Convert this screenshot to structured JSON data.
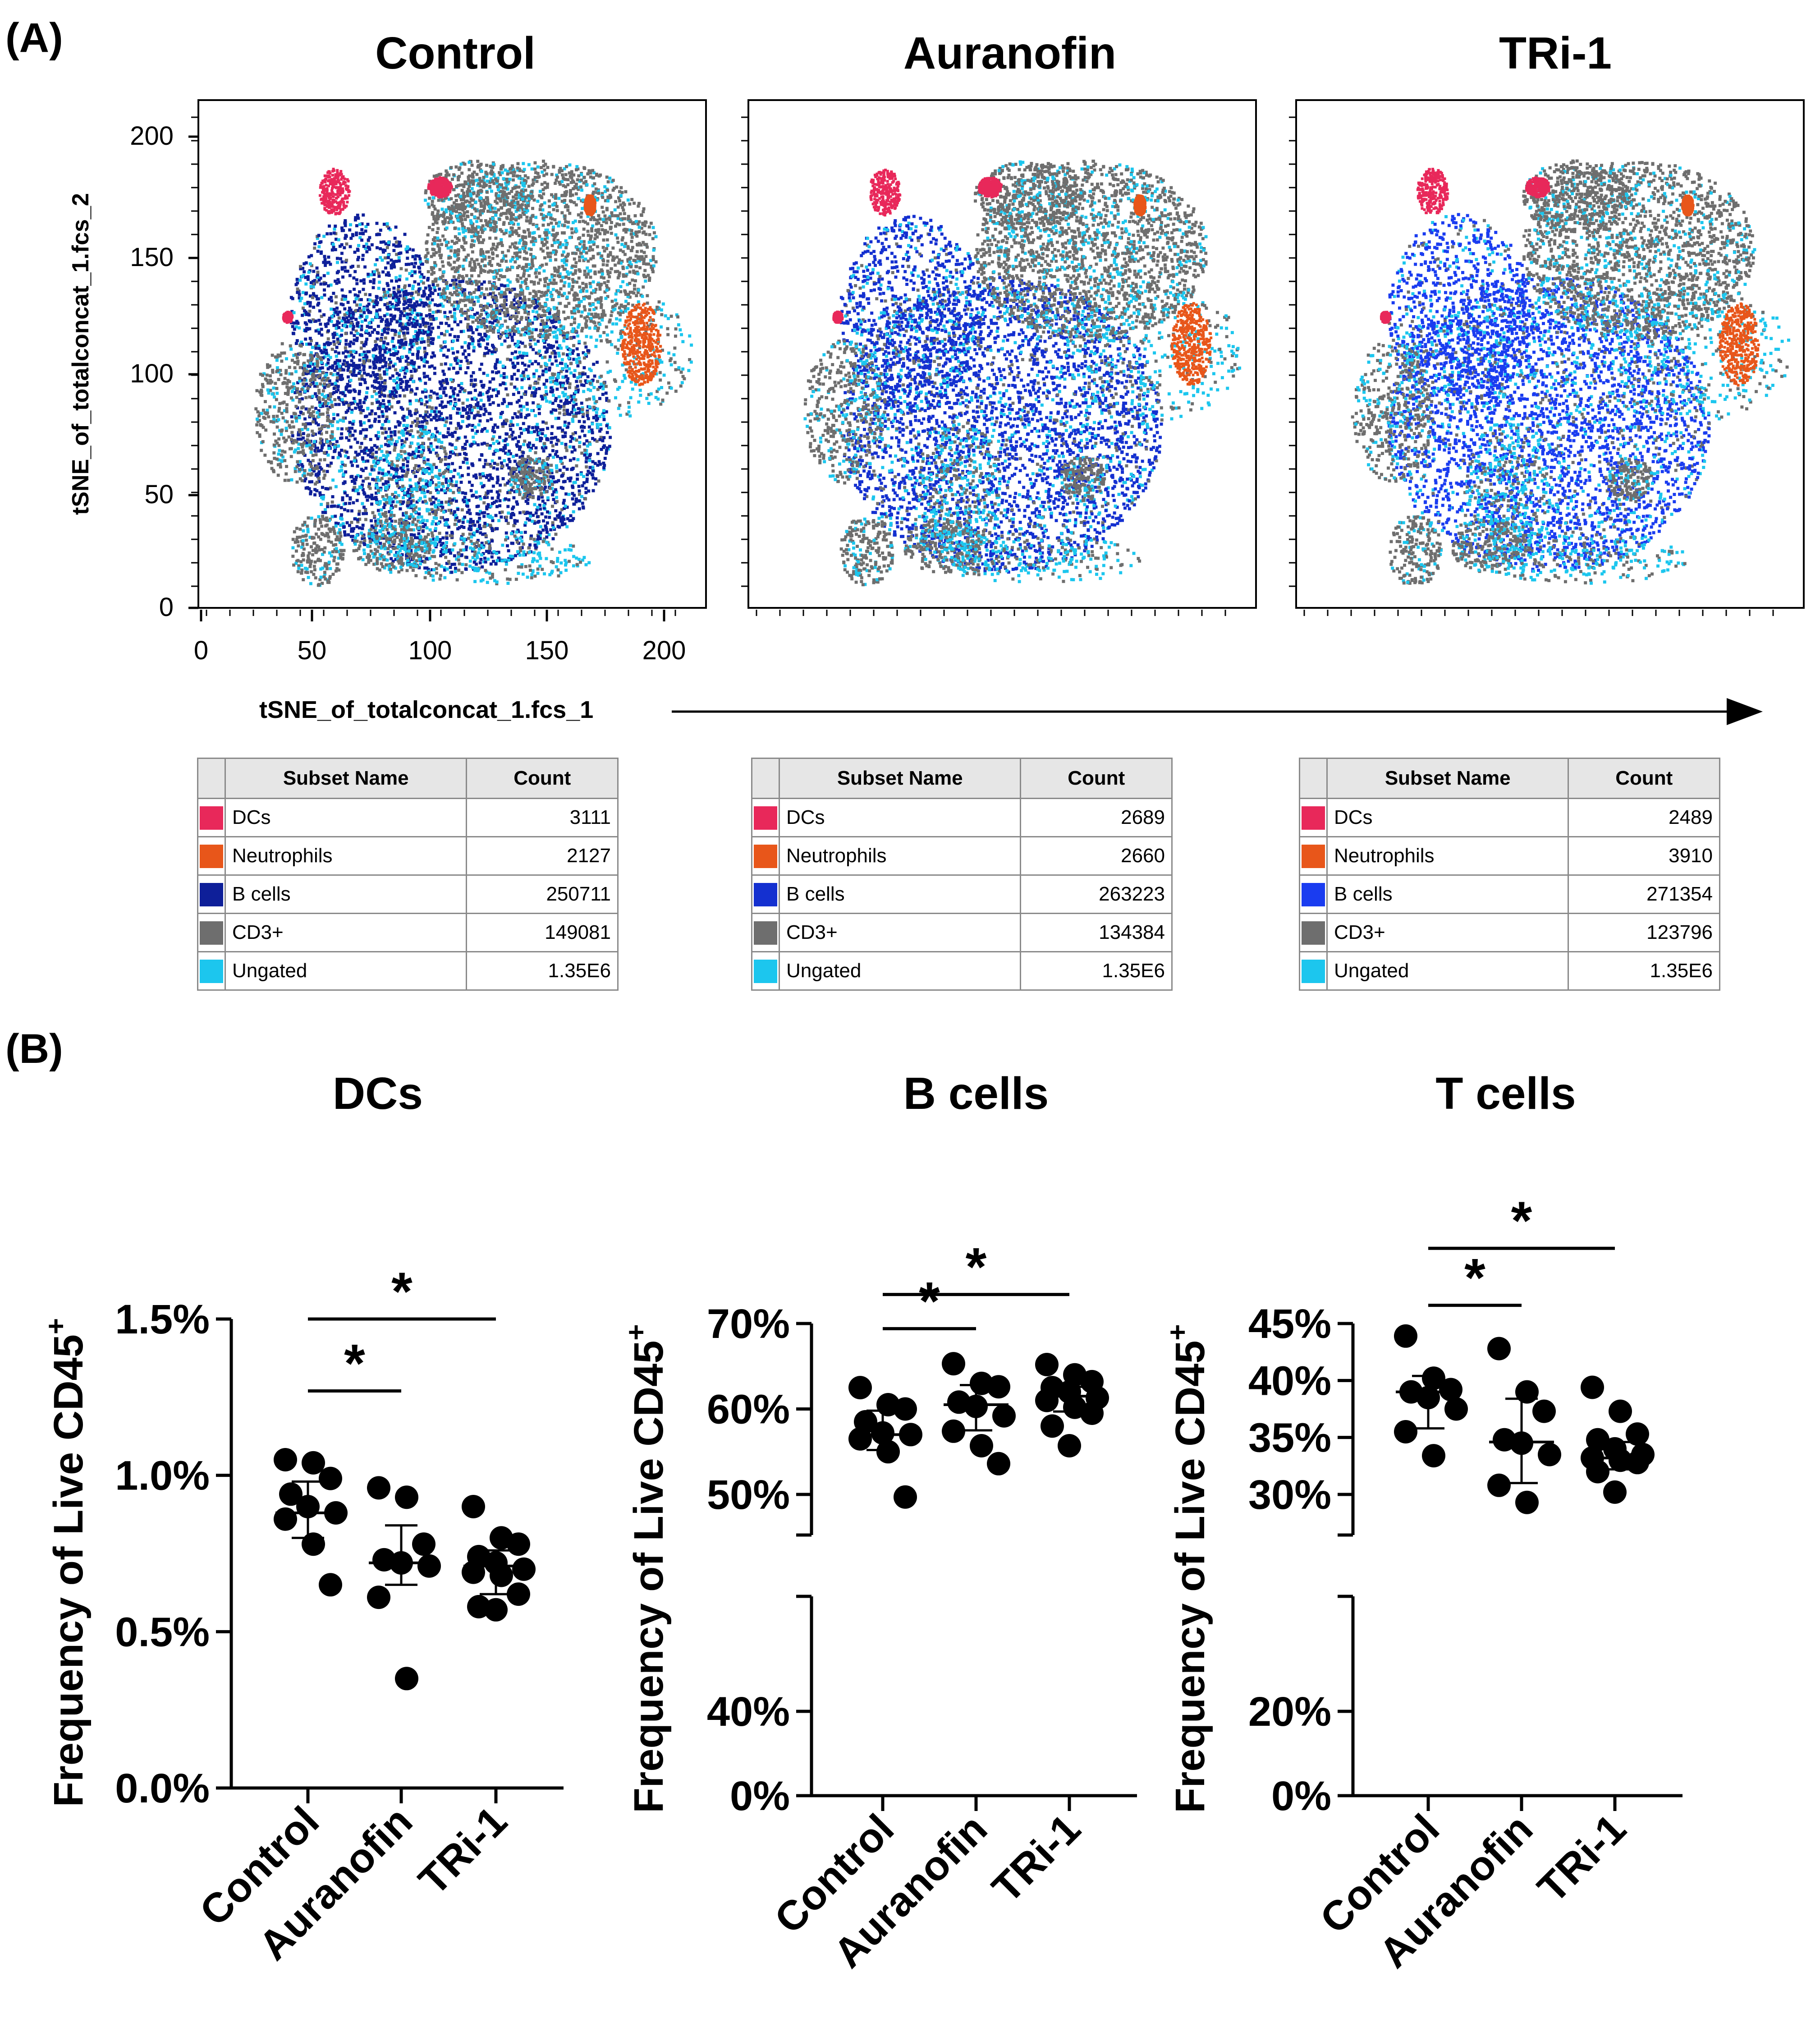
{
  "panel_a": {
    "label": "(A)",
    "y_axis_label": "tSNE_of_totalconcat_1.fcs_2",
    "x_axis_label": "tSNE_of_totalconcat_1.fcs_1",
    "y_ticks": [
      "200",
      "150",
      "100",
      "50",
      "0"
    ],
    "x_ticks": [
      "0",
      "50",
      "100",
      "150",
      "200"
    ],
    "plots": [
      {
        "title": "Control"
      },
      {
        "title": "Auranofin"
      },
      {
        "title": "TRi-1"
      }
    ],
    "table_headers": {
      "name": "Subset Name",
      "count": "Count"
    },
    "subset_colors": {
      "DCs": "#e8285a",
      "Neutrophils": "#e8561a",
      "B cells": "#1a2fc0",
      "CD3+": "#6e6e6e",
      "Ungated": "#1cc6ee"
    },
    "tables": [
      {
        "rows": [
          {
            "name": "DCs",
            "color": "#e8285a",
            "count": "3111"
          },
          {
            "name": "Neutrophils",
            "color": "#e8561a",
            "count": "2127"
          },
          {
            "name": "B cells",
            "color": "#0e1f99",
            "count": "250711"
          },
          {
            "name": "CD3+",
            "color": "#6e6e6e",
            "count": "149081"
          },
          {
            "name": "Ungated",
            "color": "#1cc6ee",
            "count": "1.35E6"
          }
        ]
      },
      {
        "rows": [
          {
            "name": "DCs",
            "color": "#e8285a",
            "count": "2689"
          },
          {
            "name": "Neutrophils",
            "color": "#e8561a",
            "count": "2660"
          },
          {
            "name": "B cells",
            "color": "#1430d0",
            "count": "263223"
          },
          {
            "name": "CD3+",
            "color": "#6e6e6e",
            "count": "134384"
          },
          {
            "name": "Ungated",
            "color": "#1cc6ee",
            "count": "1.35E6"
          }
        ]
      },
      {
        "rows": [
          {
            "name": "DCs",
            "color": "#e8285a",
            "count": "2489"
          },
          {
            "name": "Neutrophils",
            "color": "#e8561a",
            "count": "3910"
          },
          {
            "name": "B cells",
            "color": "#1a3cf0",
            "count": "271354"
          },
          {
            "name": "CD3+",
            "color": "#6e6e6e",
            "count": "123796"
          },
          {
            "name": "Ungated",
            "color": "#1cc6ee",
            "count": "1.35E6"
          }
        ]
      }
    ]
  },
  "panel_b": {
    "label": "(B)"
  },
  "chart_data": [
    {
      "type": "scatter",
      "title": "DCs",
      "ylabel": "Frequency of Live CD45",
      "ylabel_sup": "+",
      "categories": [
        "Control",
        "Auranofin",
        "TRi-1"
      ],
      "ylim": [
        0,
        1.5
      ],
      "y_ticks": [
        {
          "v": 0,
          "label": "0.0%"
        },
        {
          "v": 0.5,
          "label": "0.5%"
        },
        {
          "v": 1.0,
          "label": "1.0%"
        },
        {
          "v": 1.5,
          "label": "1.5%"
        }
      ],
      "series": [
        {
          "name": "Control",
          "values": [
            1.05,
            1.04,
            0.99,
            0.94,
            0.9,
            0.88,
            0.86,
            0.78,
            0.65
          ],
          "mean": 0.88,
          "err": [
            0.8,
            0.98
          ]
        },
        {
          "name": "Auranofin",
          "values": [
            0.96,
            0.93,
            0.78,
            0.73,
            0.72,
            0.71,
            0.61,
            0.35
          ],
          "mean": 0.72,
          "err": [
            0.65,
            0.84
          ]
        },
        {
          "name": "TRi-1",
          "values": [
            0.9,
            0.8,
            0.78,
            0.74,
            0.72,
            0.7,
            0.69,
            0.68,
            0.62,
            0.58,
            0.57
          ],
          "mean": 0.71,
          "err": [
            0.62,
            0.76
          ]
        }
      ],
      "significance": [
        {
          "from": 0,
          "to": 1,
          "label": "*",
          "y": 1.27
        },
        {
          "from": 0,
          "to": 2,
          "label": "*",
          "y": 1.5
        }
      ]
    },
    {
      "type": "scatter",
      "title": "B cells",
      "ylabel": "Frequency of Live CD45",
      "ylabel_sup": "+",
      "categories": [
        "Control",
        "Auranofin",
        "TRi-1"
      ],
      "ylim": [
        0,
        70
      ],
      "axis_break": [
        0,
        40
      ],
      "y_ticks": [
        {
          "v": 0,
          "label": "0%"
        },
        {
          "v": 40,
          "label": "40%"
        },
        {
          "v": 50,
          "label": "50%"
        },
        {
          "v": 60,
          "label": "60%"
        },
        {
          "v": 70,
          "label": "70%"
        }
      ],
      "series": [
        {
          "name": "Control",
          "values": [
            62.5,
            60.5,
            60,
            58.5,
            57.2,
            57,
            56.5,
            55,
            49.7
          ],
          "mean": 57,
          "err": [
            55.2,
            59.8
          ]
        },
        {
          "name": "Auranofin",
          "values": [
            65.3,
            63,
            62.6,
            60.8,
            60.3,
            59.2,
            57.4,
            55.7,
            53.6
          ],
          "mean": 60.5,
          "err": [
            57.5,
            62.8
          ]
        },
        {
          "name": "TRi-1",
          "values": [
            65.2,
            64,
            63.2,
            62.5,
            62,
            61.3,
            61,
            60.2,
            59.5,
            58,
            55.7
          ],
          "mean": 61.5,
          "err": [
            59.7,
            62.6
          ]
        }
      ],
      "significance": [
        {
          "from": 0,
          "to": 1,
          "label": "*",
          "y": 69.4
        },
        {
          "from": 0,
          "to": 2,
          "label": "*",
          "y": 73.4
        }
      ]
    },
    {
      "type": "scatter",
      "title": "T cells",
      "ylabel": "Frequency of Live CD45",
      "ylabel_sup": "+",
      "categories": [
        "Control",
        "Auranofin",
        "TRi-1"
      ],
      "ylim": [
        0,
        45
      ],
      "axis_break": [
        0,
        20
      ],
      "y_ticks": [
        {
          "v": 0,
          "label": "0%"
        },
        {
          "v": 20,
          "label": "20%"
        },
        {
          "v": 30,
          "label": "30%"
        },
        {
          "v": 35,
          "label": "35%"
        },
        {
          "v": 40,
          "label": "40%"
        },
        {
          "v": 45,
          "label": "45%"
        }
      ],
      "series": [
        {
          "name": "Control",
          "values": [
            43.9,
            40.2,
            39.2,
            39,
            38.5,
            37.5,
            35.5,
            33.4
          ],
          "mean": 39,
          "err": [
            35.8,
            40.4
          ]
        },
        {
          "name": "Auranofin",
          "values": [
            42.8,
            39,
            37.3,
            34.8,
            34.5,
            33.5,
            30.8,
            29.3
          ],
          "mean": 34.6,
          "err": [
            31,
            38.4
          ]
        },
        {
          "name": "TRi-1",
          "values": [
            39.4,
            37.3,
            35.3,
            34.8,
            34,
            33.5,
            33.2,
            33,
            32.8,
            32,
            30.2
          ],
          "mean": 33.2,
          "err": [
            32.2,
            34.6
          ]
        }
      ],
      "significance": [
        {
          "from": 0,
          "to": 1,
          "label": "*",
          "y": 46.6
        },
        {
          "from": 0,
          "to": 2,
          "label": "*",
          "y": 51.6
        }
      ]
    }
  ]
}
